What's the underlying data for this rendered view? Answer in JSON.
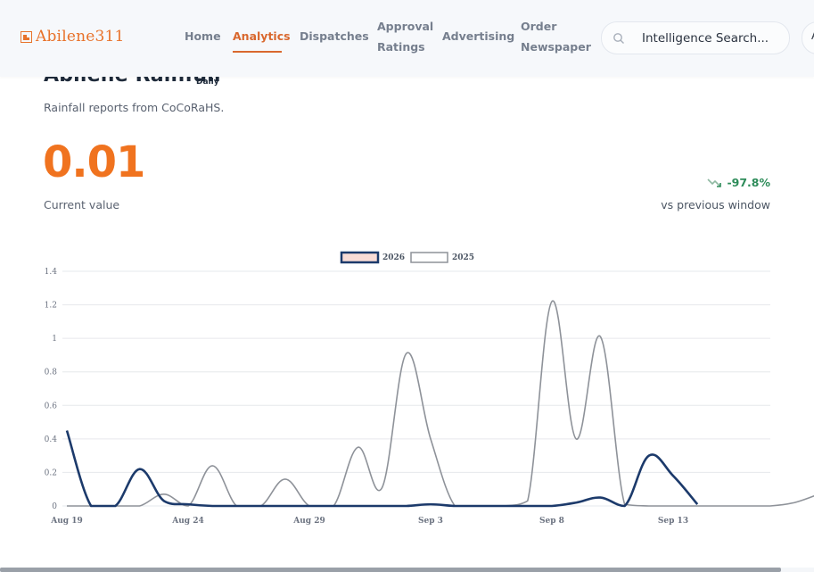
{
  "nav": {
    "logo_text": "Abilene311",
    "items": [
      {
        "label": "Home"
      },
      {
        "label": "Analytics"
      },
      {
        "label": "Dispatches"
      },
      {
        "label_line1": "Approval",
        "label_line2": "Ratings"
      },
      {
        "label": "Advertising"
      },
      {
        "label_line1": "Order",
        "label_line2": "Newspaper"
      }
    ],
    "search_placeholder": "Intelligence Search...",
    "avatar_initial": "A"
  },
  "card": {
    "title": "Abilene Rainfall",
    "badge": "Daily",
    "subtitle": "Rainfall reports from CoCoRaHS.",
    "current_value": "0.01",
    "current_caption": "Current value",
    "delta": "-97.8%",
    "delta_caption": "vs previous window"
  },
  "colors": {
    "accent": "#f0731f",
    "series_2026": "#1c3a6b",
    "series_2025": "#8e9299",
    "delta_positive": "#2e8c5a"
  },
  "chart_data": {
    "type": "line",
    "legend_position": "top-center",
    "ylim": [
      0,
      1.4
    ],
    "yticks": [
      "0",
      "0.2",
      "0.4",
      "0.6",
      "0.8",
      "1",
      "1.2",
      "1.4"
    ],
    "xtick_labels": [
      "Aug 19",
      "Aug 24",
      "Aug 29",
      "Sep 3",
      "Sep 8",
      "Sep 13"
    ],
    "grid": true,
    "series": [
      {
        "name": "2026",
        "x": [
          "Aug 19",
          "Aug 20",
          "Aug 21",
          "Aug 22",
          "Aug 23",
          "Aug 24",
          "Aug 25",
          "Aug 26",
          "Aug 27",
          "Aug 28",
          "Aug 29",
          "Aug 30",
          "Aug 31",
          "Sep 1",
          "Sep 2",
          "Sep 3",
          "Sep 4",
          "Sep 5",
          "Sep 6",
          "Sep 7",
          "Sep 8",
          "Sep 9",
          "Sep 10",
          "Sep 11",
          "Sep 12",
          "Sep 13",
          "Sep 14"
        ],
        "values": [
          0.45,
          0.0,
          0.0,
          0.22,
          0.03,
          0.01,
          0.0,
          0.0,
          0.0,
          0.0,
          0.0,
          0.0,
          0.0,
          0.0,
          0.0,
          0.01,
          0.0,
          0.0,
          0.0,
          0.0,
          0.0,
          0.02,
          0.05,
          0.0,
          0.3,
          0.18,
          0.01
        ]
      },
      {
        "name": "2025",
        "x": [
          "Aug 19",
          "Aug 20",
          "Aug 21",
          "Aug 22",
          "Aug 23",
          "Aug 24",
          "Aug 25",
          "Aug 26",
          "Aug 27",
          "Aug 28",
          "Aug 29",
          "Aug 30",
          "Aug 31",
          "Sep 1",
          "Sep 2",
          "Sep 3",
          "Sep 4",
          "Sep 5",
          "Sep 6",
          "Sep 7",
          "Sep 8",
          "Sep 9",
          "Sep 10",
          "Sep 11",
          "Sep 12",
          "Sep 13",
          "Sep 14",
          "Sep 15",
          "Sep 16",
          "Sep 17",
          "Sep 18",
          "Sep 19"
        ],
        "values": [
          0.0,
          0.0,
          0.0,
          0.0,
          0.07,
          0.0,
          0.24,
          0.0,
          0.0,
          0.16,
          0.0,
          0.0,
          0.35,
          0.11,
          0.91,
          0.4,
          0.0,
          0.0,
          0.0,
          0.03,
          1.22,
          0.4,
          1.01,
          0.01,
          0.0,
          0.0,
          0.0,
          0.0,
          0.0,
          0.0,
          0.02,
          0.07
        ]
      }
    ]
  }
}
